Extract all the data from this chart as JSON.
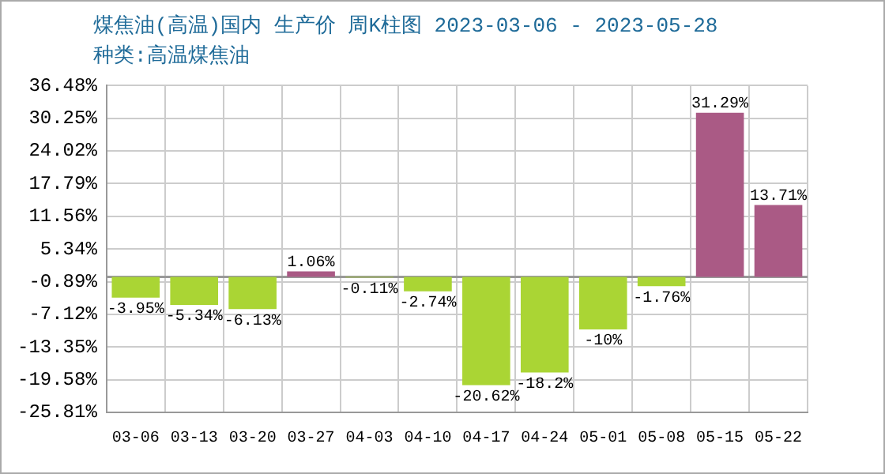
{
  "chart_data": {
    "type": "bar",
    "title": "煤焦油(高温)国内 生产价 周K柱图 2023-03-06 - 2023-05-28",
    "subtitle": "种类:高温煤焦油",
    "categories": [
      "03-06",
      "03-13",
      "03-20",
      "03-27",
      "04-03",
      "04-10",
      "04-17",
      "04-24",
      "05-01",
      "05-08",
      "05-15",
      "05-22"
    ],
    "values": [
      -3.95,
      -5.34,
      -6.13,
      1.06,
      -0.11,
      -2.74,
      -20.62,
      -18.2,
      -10,
      -1.76,
      31.29,
      13.71
    ],
    "value_labels": [
      "-3.95%",
      "-5.34%",
      "-6.13%",
      "1.06%",
      "-0.11%",
      "-2.74%",
      "-20.62%",
      "-18.2%",
      "-10%",
      "-1.76%",
      "31.29%",
      "13.71%"
    ],
    "colors": [
      "#aad534",
      "#aad534",
      "#aad534",
      "#aa5a85",
      "#aad534",
      "#aad534",
      "#aad534",
      "#aad534",
      "#aad534",
      "#aad534",
      "#aa5a85",
      "#aa5a85"
    ],
    "ylim": [
      -25.81,
      36.48
    ],
    "yticks": [
      {
        "value": -25.81,
        "label": "-25.81%"
      },
      {
        "value": -19.58,
        "label": "-19.58%"
      },
      {
        "value": -13.35,
        "label": "-13.35%"
      },
      {
        "value": -7.12,
        "label": "-7.12%"
      },
      {
        "value": -0.89,
        "label": "-0.89%"
      },
      {
        "value": 5.34,
        "label": "5.34%"
      },
      {
        "value": 11.56,
        "label": "11.56%"
      },
      {
        "value": 17.79,
        "label": "17.79%"
      },
      {
        "value": 24.02,
        "label": "24.02%"
      },
      {
        "value": 30.25,
        "label": "30.25%"
      },
      {
        "value": 36.48,
        "label": "36.48%"
      }
    ],
    "ref_lines": [
      {
        "axis": "y",
        "value": 0,
        "color": "#999999"
      }
    ],
    "grid": true
  }
}
